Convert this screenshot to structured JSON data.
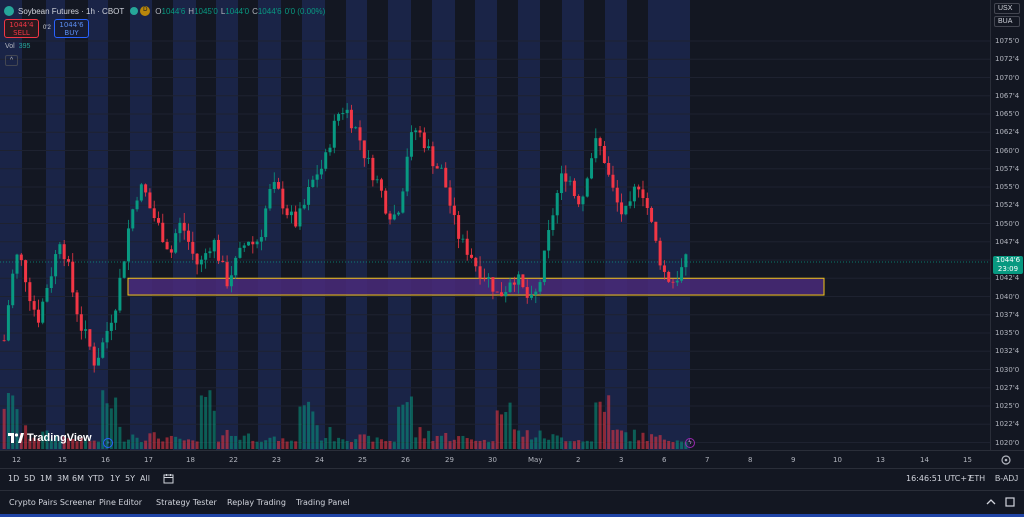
{
  "legend": {
    "title": "Soybean Futures · 1h · CBOT",
    "status_badge": "D",
    "ohlc": [
      {
        "key": "O",
        "value": "1044'6"
      },
      {
        "key": "H",
        "value": "1045'0"
      },
      {
        "key": "L",
        "value": "1044'0"
      },
      {
        "key": "C",
        "value": "1044'6"
      }
    ],
    "change": "0'0 (0.00%)"
  },
  "trade": {
    "sell_price": "1044'4",
    "sell_label": "SELL",
    "spread": "0'2",
    "buy_price": "1044'6",
    "buy_label": "BUY"
  },
  "volume": {
    "key": "Vol",
    "value": "395"
  },
  "collapse_glyph": "^",
  "brand": "TradingView",
  "price_axis": {
    "currency": "USX",
    "unit": "BUA",
    "labels": [
      "1075'0",
      "1072'4",
      "1070'0",
      "1067'4",
      "1065'0",
      "1062'4",
      "1060'0",
      "1057'4",
      "1055'0",
      "1052'4",
      "1050'0",
      "1047'4",
      "1045'0",
      "1042'4",
      "1040'0",
      "1037'4",
      "1035'0",
      "1032'4",
      "1030'0",
      "1027'4",
      "1025'0",
      "1022'4",
      "1020'0"
    ],
    "current_price": "1044'6",
    "countdown": "23:09"
  },
  "time_axis": {
    "labels": [
      "12",
      "15",
      "16",
      "17",
      "18",
      "22",
      "23",
      "24",
      "25",
      "26",
      "29",
      "30",
      "May",
      "2",
      "3",
      "6",
      "7",
      "8",
      "9",
      "10",
      "13",
      "14",
      "15"
    ]
  },
  "toolbar": {
    "ranges": [
      "1D",
      "5D",
      "1M",
      "3M",
      "6M",
      "YTD",
      "1Y",
      "5Y",
      "All"
    ],
    "clock": "16:46:51 UTC+7",
    "session": "ETH",
    "adjustment": "B-ADJ"
  },
  "panels": [
    "Crypto Pairs Screener",
    "Pine Editor",
    "Strategy Tester",
    "Replay Trading",
    "Trading Panel"
  ],
  "colors": {
    "up": "#089981",
    "down": "#f23645",
    "zone_fill": "#4a2a7a",
    "zone_border": "#f5c518",
    "session_bg": "#1a2447"
  },
  "chart_data": {
    "type": "candlestick",
    "price_range": [
      1018.5,
      1077.5
    ],
    "support_zone": [
      1040.2,
      1042.5
    ],
    "closes": [
      1034,
      1042,
      1046,
      1043,
      1039,
      1037,
      1041,
      1044,
      1048,
      1045,
      1040,
      1036,
      1034,
      1031,
      1033,
      1036,
      1039,
      1044,
      1050,
      1054,
      1055,
      1052,
      1050,
      1048,
      1046,
      1050,
      1049,
      1046,
      1044,
      1046,
      1048,
      1045,
      1042,
      1044,
      1046,
      1048,
      1047,
      1049,
      1054,
      1055,
      1053,
      1051,
      1050,
      1052,
      1055,
      1057,
      1058,
      1062,
      1065,
      1066,
      1064,
      1062,
      1059,
      1057,
      1055,
      1052,
      1051,
      1053,
      1060,
      1063,
      1062,
      1060,
      1058,
      1057,
      1053,
      1049,
      1047,
      1046,
      1044,
      1043,
      1042,
      1040,
      1041,
      1043,
      1042,
      1040,
      1039,
      1042,
      1047,
      1052,
      1056,
      1057,
      1054,
      1053,
      1058,
      1061,
      1060,
      1056,
      1053,
      1051,
      1052,
      1056,
      1054,
      1050,
      1046,
      1043,
      1042,
      1043,
      1044.75
    ],
    "volume_profile": "intraday"
  }
}
